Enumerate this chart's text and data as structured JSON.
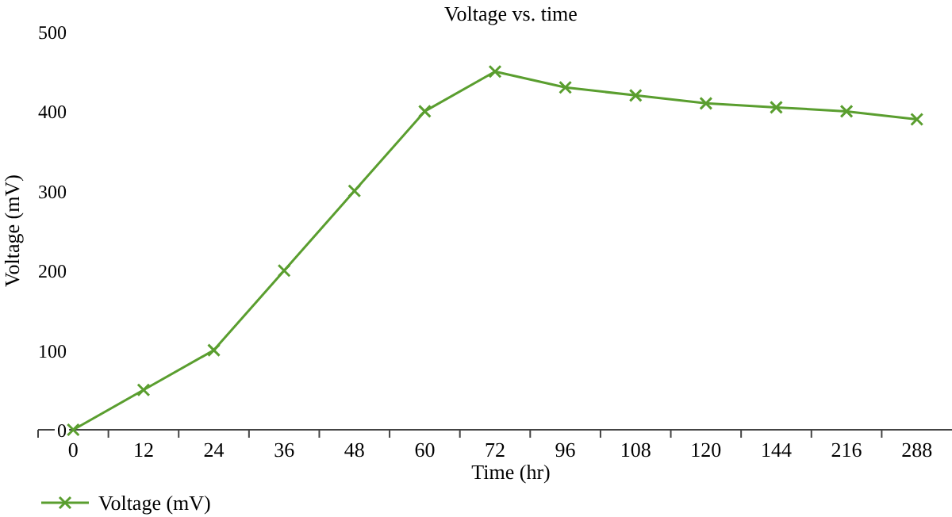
{
  "chart_data": {
    "type": "line",
    "title": "Voltage vs. time",
    "xlabel": "Time (hr)",
    "ylabel": "Voltage (mV)",
    "categories": [
      "0",
      "12",
      "24",
      "36",
      "48",
      "60",
      "72",
      "96",
      "108",
      "120",
      "144",
      "216",
      "288"
    ],
    "series": [
      {
        "name": "Voltage (mV)",
        "color": "#5a9e2f",
        "values": [
          0,
          50,
          100,
          200,
          300,
          400,
          450,
          430,
          420,
          410,
          405,
          400,
          390
        ]
      }
    ],
    "ylim": [
      0,
      500
    ],
    "yticks": [
      0,
      100,
      200,
      300,
      400,
      500
    ],
    "grid": false,
    "legend": "bottom left",
    "marker": "cross",
    "line_style": "solid"
  }
}
